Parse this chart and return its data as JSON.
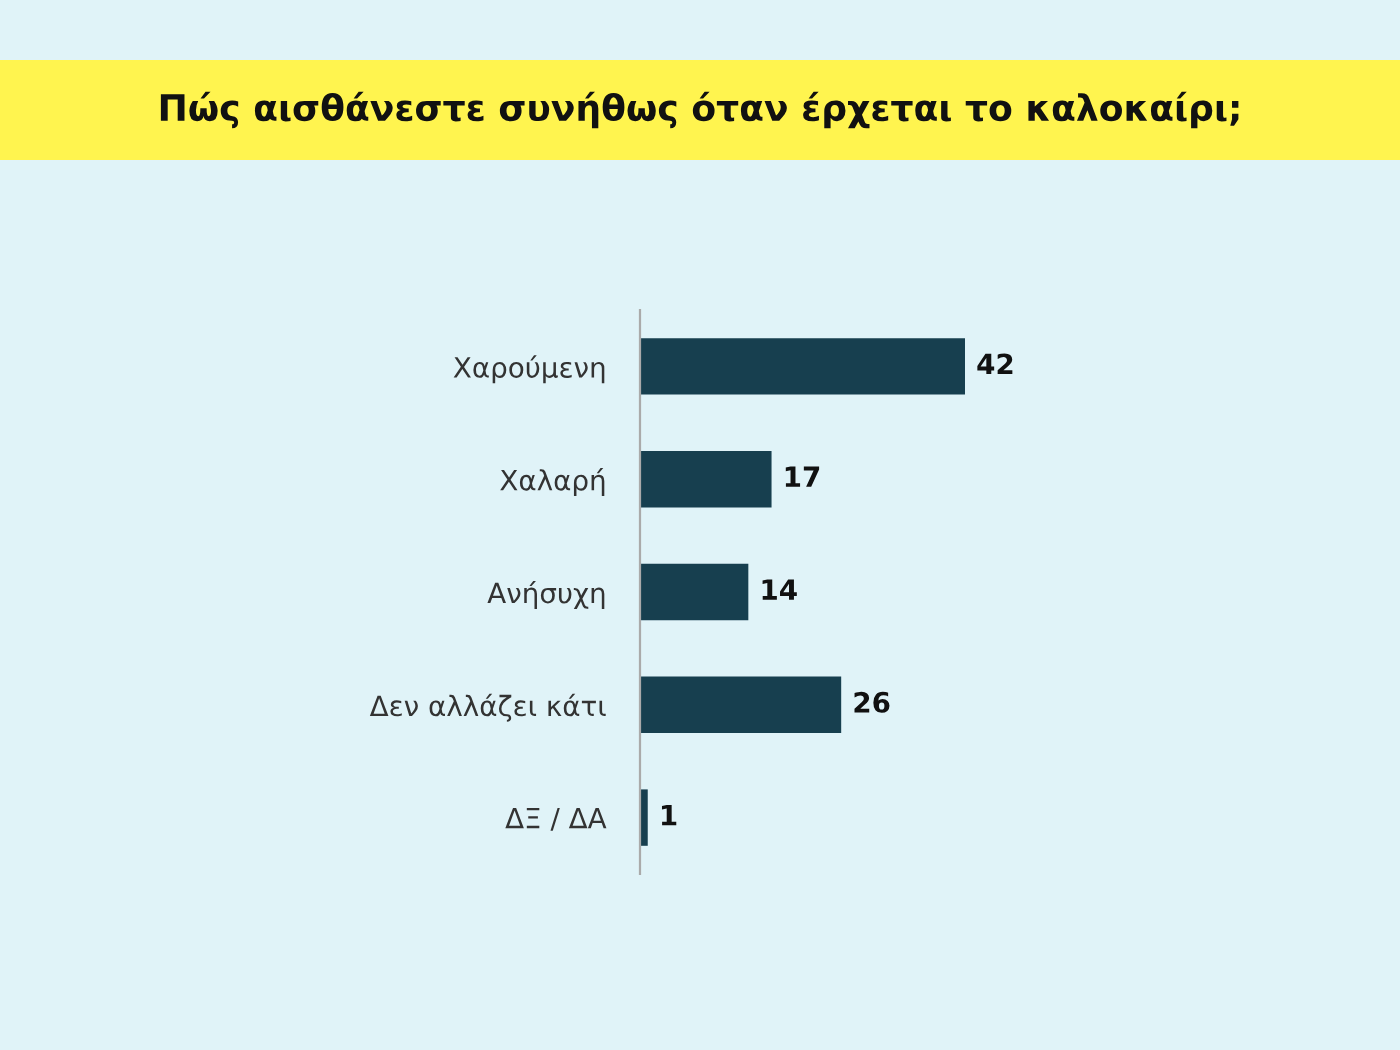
{
  "chart_data": {
    "type": "bar",
    "orientation": "horizontal",
    "title": "Πώς αισθάνεστε συνήθως όταν έρχεται το καλοκαίρι;",
    "categories": [
      "Χαρούμενη",
      "Χαλαρή",
      "Ανήσυχη",
      "Δεν αλλάζει κάτι",
      "ΔΞ / ΔΑ"
    ],
    "values": [
      42,
      17,
      14,
      26,
      1
    ],
    "color": "#173f4f",
    "data_labels": true,
    "tick_labels": "y"
  }
}
